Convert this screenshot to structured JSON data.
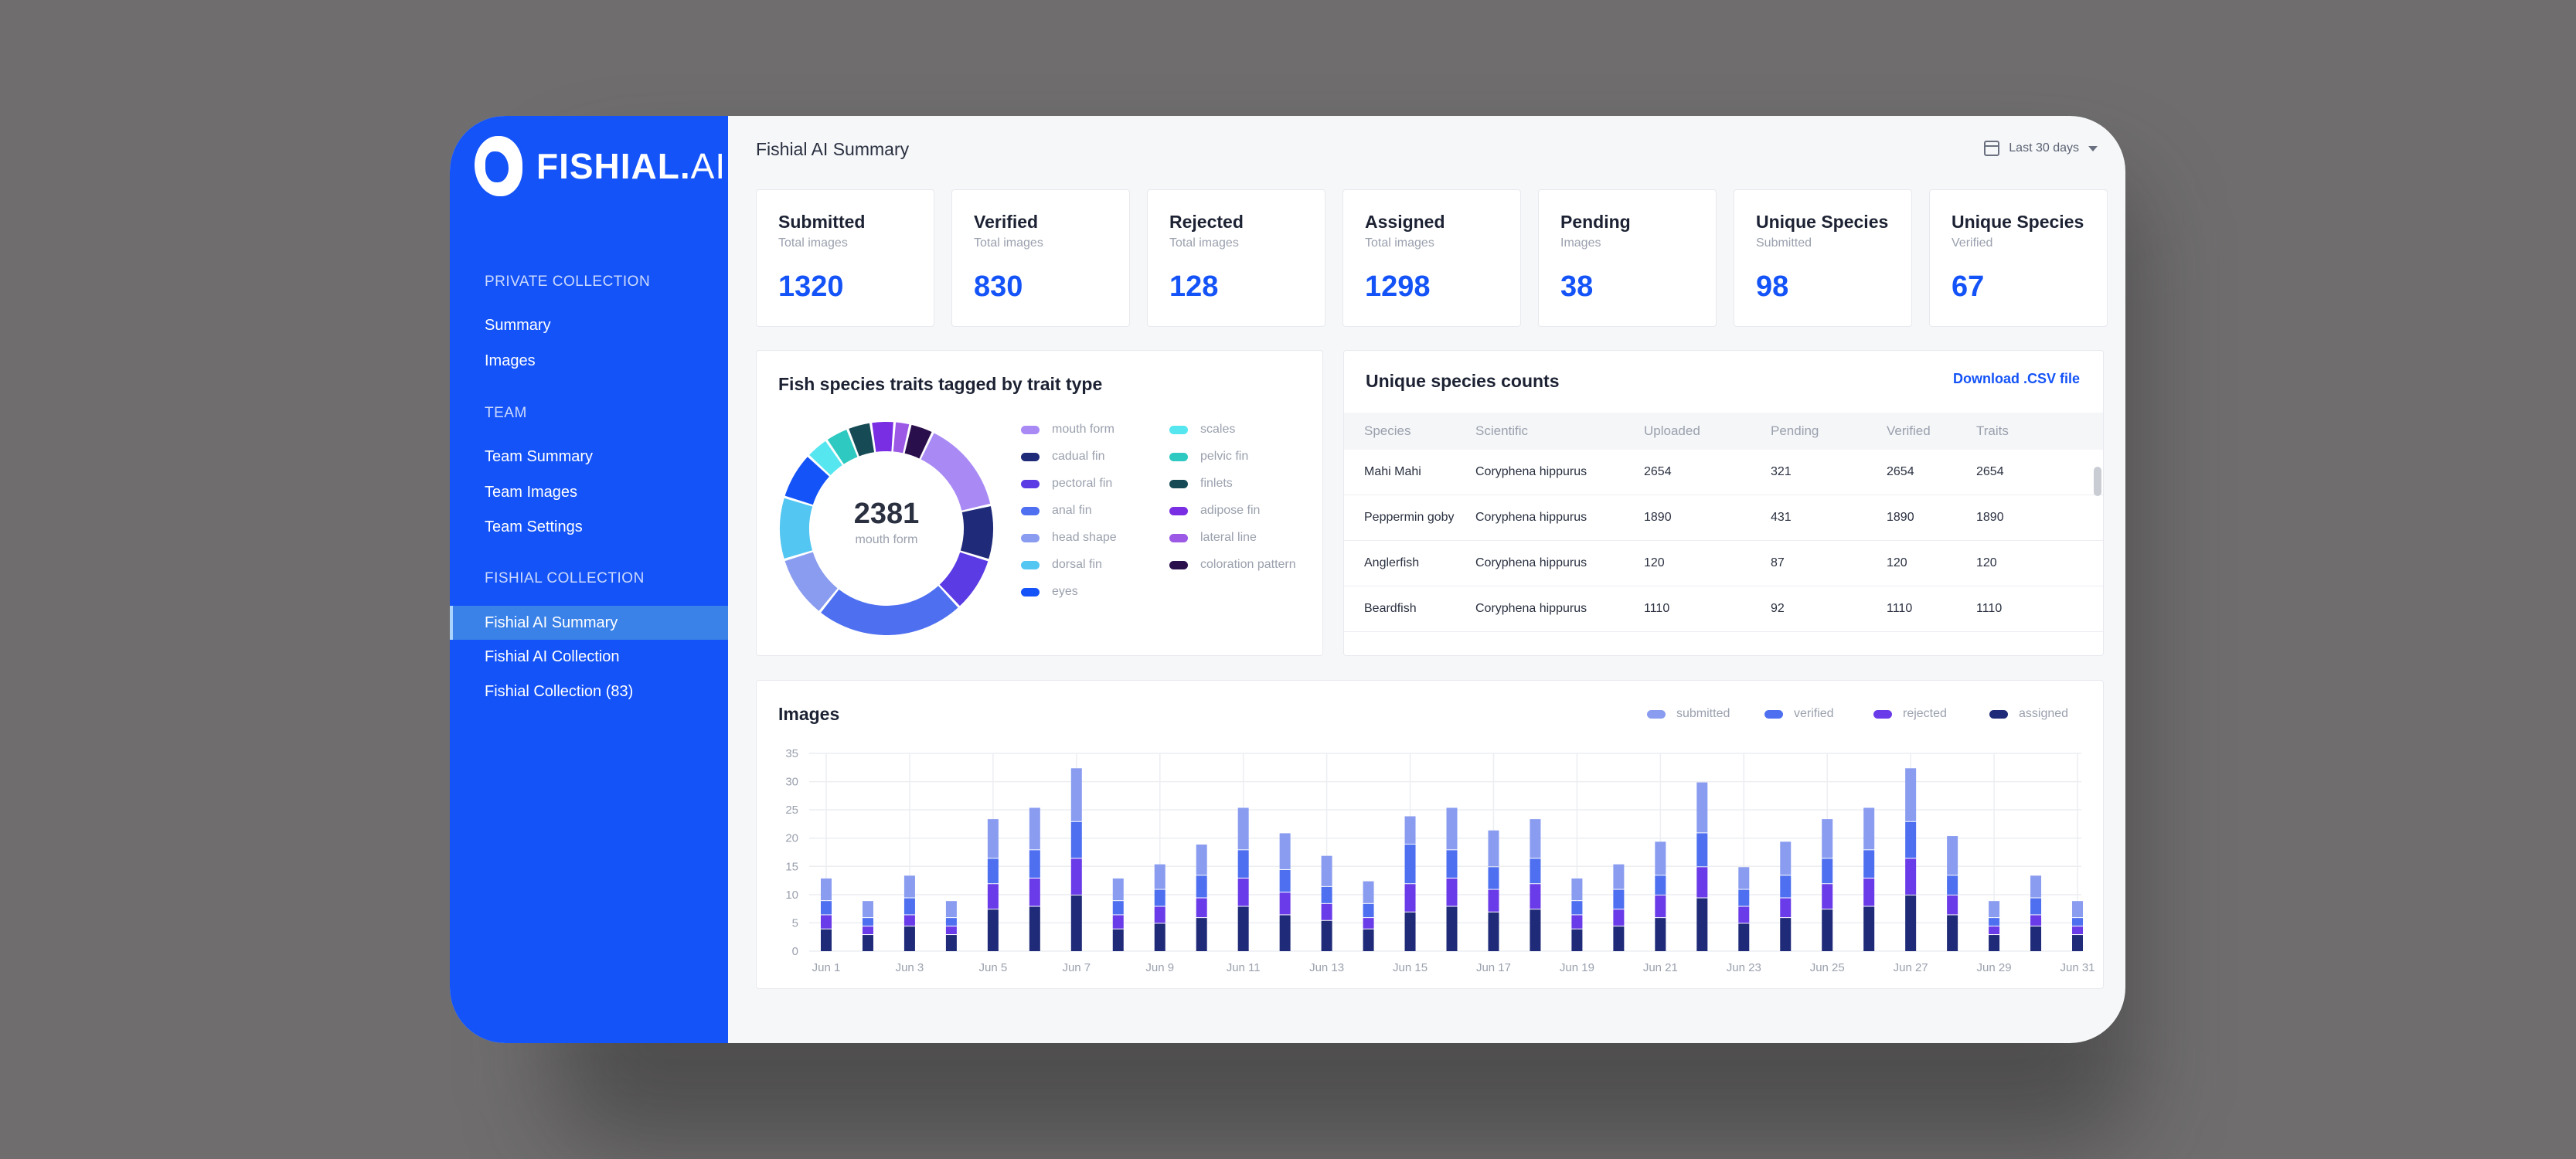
{
  "app": {
    "logo_text": "FISHIAL.",
    "logo_text_thin": "AI"
  },
  "sidebar": {
    "sections": [
      {
        "label": "PRIVATE COLLECTION",
        "items": [
          {
            "label": "Summary"
          },
          {
            "label": "Images"
          }
        ]
      },
      {
        "label": "TEAM",
        "items": [
          {
            "label": "Team Summary"
          },
          {
            "label": "Team Images"
          },
          {
            "label": "Team Settings"
          }
        ]
      },
      {
        "label": "FISHIAL COLLECTION",
        "items": [
          {
            "label": "Fishial AI Summary",
            "active": true
          },
          {
            "label": "Fishial AI Collection"
          },
          {
            "label": "Fishial Collection (83)"
          }
        ]
      }
    ]
  },
  "header": {
    "title": "Fishial AI Summary",
    "date_filter": "Last 30 days"
  },
  "cards": [
    {
      "title": "Submitted",
      "sub": "Total images",
      "value": "1320"
    },
    {
      "title": "Verified",
      "sub": "Total images",
      "value": "830"
    },
    {
      "title": "Rejected",
      "sub": "Total images",
      "value": "128"
    },
    {
      "title": "Assigned",
      "sub": "Total images",
      "value": "1298"
    },
    {
      "title": "Pending",
      "sub": "Images",
      "value": "38"
    },
    {
      "title": "Unique Species",
      "sub": "Submitted",
      "value": "98"
    },
    {
      "title": "Unique Species",
      "sub": "Verified",
      "value": "67"
    }
  ],
  "traits_panel": {
    "title": "Fish species traits tagged by trait type",
    "center_value": "2381",
    "center_label": "mouth form"
  },
  "species_panel": {
    "title": "Unique species counts",
    "download_label": "Download .CSV file",
    "columns": [
      "Species",
      "Scientific",
      "Uploaded",
      "Pending",
      "Verified",
      "Traits"
    ],
    "rows": [
      [
        "Mahi Mahi",
        "Coryphena hippurus",
        "2654",
        "321",
        "2654",
        "2654"
      ],
      [
        "Peppermin goby",
        "Coryphena hippurus",
        "1890",
        "431",
        "1890",
        "1890"
      ],
      [
        "Anglerfish",
        "Coryphena hippurus",
        "120",
        "87",
        "120",
        "120"
      ],
      [
        "Beardfish",
        "Coryphena hippurus",
        "1110",
        "92",
        "1110",
        "1110"
      ]
    ]
  },
  "images_panel": {
    "title": "Images"
  },
  "chart_data": [
    {
      "type": "pie",
      "categories": [
        "mouth form",
        "cadual fin",
        "pectoral fin",
        "anal fin",
        "head shape",
        "dorsal fin",
        "eyes",
        "scales",
        "pelvic fin",
        "finlets",
        "adipose fin",
        "lateral line",
        "coloration pattern"
      ],
      "values": [
        12,
        7,
        7,
        19,
        8,
        8,
        6,
        3,
        3,
        3,
        3,
        2,
        3
      ],
      "colors": [
        "#a98af5",
        "#1f2a78",
        "#5b3be3",
        "#4e6ff0",
        "#8a9cf0",
        "#53c6f2",
        "#1453f7",
        "#55e6f0",
        "#2ec9c0",
        "#164a55",
        "#7a2ee3",
        "#9b59e6",
        "#2a0f4d"
      ],
      "center_value": "2381",
      "center_label": "mouth form",
      "legend": "right"
    },
    {
      "type": "bar",
      "stacked": true,
      "title": "Images",
      "categories": [
        "Jun 1",
        "Jun 2",
        "Jun 3",
        "Jun 4",
        "Jun 5",
        "Jun 6",
        "Jun 7",
        "Jun 8",
        "Jun 9",
        "Jun 10",
        "Jun 11",
        "Jun 12",
        "Jun 13",
        "Jun 14",
        "Jun 15",
        "Jun 16",
        "Jun 17",
        "Jun 18",
        "Jun 19",
        "Jun 20",
        "Jun 21",
        "Jun 22",
        "Jun 23",
        "Jun 24",
        "Jun 25",
        "Jun 26",
        "Jun 27",
        "Jun 28",
        "Jun 29",
        "Jun 30",
        "Jun 31"
      ],
      "tick_labels": [
        "Jun 1",
        "Jun 3",
        "Jun 5",
        "Jun 7",
        "Jun 9",
        "Jun 11",
        "Jun 13",
        "Jun 15",
        "Jun 17",
        "Jun 19",
        "Jun 21",
        "Jun 23",
        "Jun 25",
        "Jun 27",
        "Jun 29",
        "Jun 31"
      ],
      "series": [
        {
          "name": "assigned",
          "color": "#1f2a78",
          "values": [
            4,
            3,
            4.5,
            3,
            7.5,
            8,
            10,
            4,
            5,
            6,
            8,
            6.5,
            5.5,
            4,
            7,
            8,
            7,
            7.5,
            4,
            4.5,
            6,
            9.5,
            5,
            6,
            7.5,
            8,
            10,
            6.5,
            3,
            4.5,
            3
          ]
        },
        {
          "name": "rejected",
          "color": "#6a3be8",
          "values": [
            2.5,
            1.5,
            2,
            1.5,
            4.5,
            5,
            6.5,
            2.5,
            3,
            3.5,
            5,
            4,
            3,
            2,
            5,
            5,
            4,
            4.5,
            2.5,
            3,
            4,
            5.5,
            3,
            3.5,
            4.5,
            5,
            6.5,
            3.5,
            1.5,
            2,
            1.5
          ]
        },
        {
          "name": "verified",
          "color": "#4e6ff0",
          "values": [
            2.5,
            1.5,
            3,
            1.5,
            4.5,
            5,
            6.5,
            2.5,
            3,
            4,
            5,
            4,
            3,
            2.5,
            7,
            5,
            4,
            4.5,
            2.5,
            3.5,
            3.5,
            6,
            3,
            4,
            4.5,
            5,
            6.5,
            3.5,
            1.5,
            3,
            1.5
          ]
        },
        {
          "name": "submitted",
          "color": "#8a9cf0",
          "values": [
            4,
            3,
            4,
            3,
            7,
            7.5,
            9.5,
            4,
            4.5,
            5.5,
            7.5,
            6.5,
            5.5,
            4,
            5,
            7.5,
            6.5,
            7,
            4,
            4.5,
            6,
            9,
            4,
            6,
            7,
            7.5,
            9.5,
            7,
            3,
            4,
            3
          ]
        }
      ],
      "ylim": [
        0,
        35
      ],
      "yticks": [
        0,
        5,
        10,
        15,
        20,
        25,
        30,
        35
      ],
      "legend": "top-right",
      "grid": true
    }
  ]
}
